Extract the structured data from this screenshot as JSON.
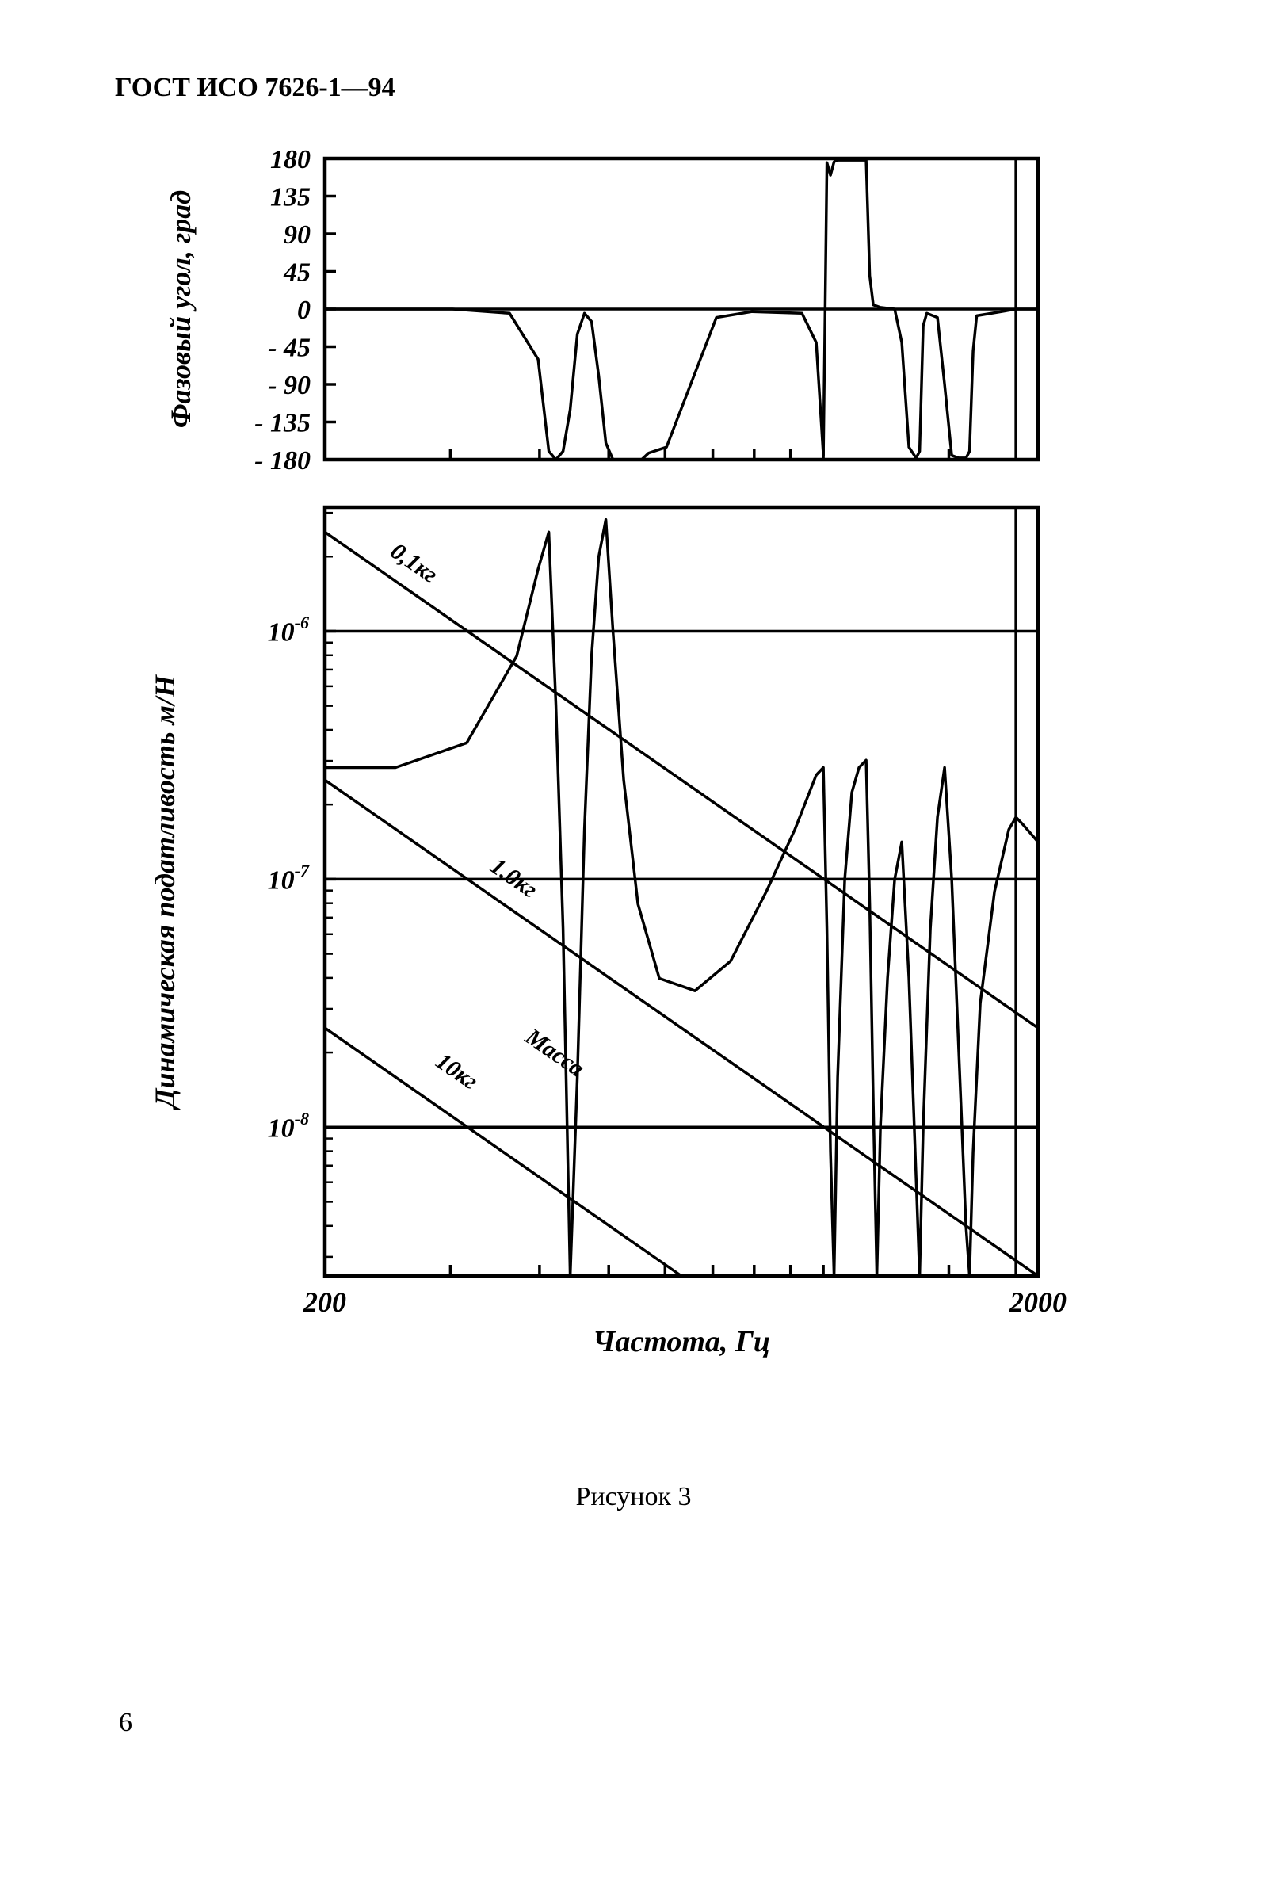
{
  "header": "ГОСТ ИСО 7626-1—94",
  "caption": "Рисунок 3",
  "page_number": "6",
  "figure": {
    "stroke_color": "#000000",
    "stroke_width": 3.5,
    "axis_width": 4.5,
    "bg": "#ffffff",
    "x_axis": {
      "label": "Частота, Гц",
      "min_log": 2.301,
      "max_log": 3.301,
      "tick_labels": [
        "200",
        "2000"
      ],
      "tick_positions_log": [
        2.301,
        3.301
      ],
      "minor_ticks_log": [
        2.477,
        2.602,
        2.699,
        2.778,
        2.845,
        2.903,
        2.954,
        3.0,
        3.176
      ],
      "label_fontsize": 38
    },
    "phase_chart": {
      "y_label": "Фазовый угол, град",
      "y_min": -180,
      "y_max": 180,
      "y_ticks": [
        180,
        135,
        90,
        45,
        0,
        -45,
        -90,
        -135,
        -180
      ],
      "y_fontsize": 34,
      "label_fontsize": 36,
      "curve_logx_deg": [
        [
          2.301,
          0
        ],
        [
          2.48,
          0
        ],
        [
          2.56,
          -5
        ],
        [
          2.6,
          -60
        ],
        [
          2.615,
          -170
        ],
        [
          2.625,
          -180
        ],
        [
          2.635,
          -170
        ],
        [
          2.645,
          -120
        ],
        [
          2.655,
          -30
        ],
        [
          2.665,
          -5
        ],
        [
          2.675,
          -15
        ],
        [
          2.685,
          -80
        ],
        [
          2.695,
          -160
        ],
        [
          2.705,
          -180
        ],
        [
          2.735,
          -180
        ],
        [
          2.745,
          -180
        ],
        [
          2.755,
          -172
        ],
        [
          2.78,
          -165
        ],
        [
          2.85,
          -10
        ],
        [
          2.9,
          -3
        ],
        [
          2.97,
          -5
        ],
        [
          2.99,
          -40
        ],
        [
          3.0,
          -175
        ],
        [
          3.005,
          175
        ],
        [
          3.01,
          160
        ],
        [
          3.015,
          176
        ],
        [
          3.02,
          178
        ],
        [
          3.04,
          178
        ],
        [
          3.06,
          178
        ],
        [
          3.065,
          40
        ],
        [
          3.07,
          5
        ],
        [
          3.08,
          2
        ],
        [
          3.1,
          0
        ],
        [
          3.11,
          -40
        ],
        [
          3.12,
          -165
        ],
        [
          3.13,
          -178
        ],
        [
          3.135,
          -170
        ],
        [
          3.14,
          -20
        ],
        [
          3.145,
          -5
        ],
        [
          3.16,
          -10
        ],
        [
          3.17,
          -90
        ],
        [
          3.18,
          -175
        ],
        [
          3.19,
          -178
        ],
        [
          3.2,
          -178
        ],
        [
          3.205,
          -170
        ],
        [
          3.21,
          -50
        ],
        [
          3.215,
          -8
        ],
        [
          3.25,
          -3
        ],
        [
          3.27,
          0
        ],
        [
          3.28,
          0
        ],
        [
          3.301,
          0
        ]
      ],
      "zero_line": true
    },
    "compliance_chart": {
      "y_label": "Динамическая податливость м/Н",
      "y_min_log": -8.6,
      "y_max_log": -5.5,
      "y_ticks_log": [
        -6,
        -7,
        -8
      ],
      "y_tick_labels": [
        "10⁻⁶",
        "10⁻⁷",
        "10⁻⁸"
      ],
      "y_fontsize": 34,
      "label_fontsize": 36,
      "mass_lines": [
        {
          "label": "0,1кг",
          "y_at_200_log": -5.6,
          "y_at_2000_log": -7.6,
          "label_pos_logx": 2.42,
          "label_pos_logy": -5.75
        },
        {
          "label": "1,0кг",
          "y_at_200_log": -6.6,
          "y_at_2000_log": -8.6,
          "label_pos_logx": 2.56,
          "label_pos_logy": -7.02
        },
        {
          "label": "10кг",
          "y_at_200_log": -7.6,
          "y_at_2000_log": -9.6,
          "label_pos_logx": 2.48,
          "label_pos_logy": -7.8
        }
      ],
      "mass_text": {
        "label": "Масса",
        "pos_logx": 2.58,
        "pos_logy": -7.65
      },
      "curve_logx_logy": [
        [
          2.301,
          -6.55
        ],
        [
          2.4,
          -6.55
        ],
        [
          2.5,
          -6.45
        ],
        [
          2.57,
          -6.1
        ],
        [
          2.6,
          -5.75
        ],
        [
          2.615,
          -5.6
        ],
        [
          2.625,
          -6.3
        ],
        [
          2.635,
          -7.2
        ],
        [
          2.645,
          -8.6
        ],
        [
          2.655,
          -7.8
        ],
        [
          2.665,
          -6.8
        ],
        [
          2.675,
          -6.1
        ],
        [
          2.685,
          -5.7
        ],
        [
          2.695,
          -5.55
        ],
        [
          2.705,
          -6.0
        ],
        [
          2.72,
          -6.6
        ],
        [
          2.74,
          -7.1
        ],
        [
          2.77,
          -7.4
        ],
        [
          2.82,
          -7.45
        ],
        [
          2.87,
          -7.33
        ],
        [
          2.92,
          -7.05
        ],
        [
          2.96,
          -6.8
        ],
        [
          2.99,
          -6.58
        ],
        [
          3.0,
          -6.55
        ],
        [
          3.005,
          -7.2
        ],
        [
          3.01,
          -8.1
        ],
        [
          3.015,
          -8.6
        ],
        [
          3.02,
          -7.8
        ],
        [
          3.03,
          -7.0
        ],
        [
          3.04,
          -6.65
        ],
        [
          3.05,
          -6.55
        ],
        [
          3.06,
          -6.52
        ],
        [
          3.065,
          -7.1
        ],
        [
          3.07,
          -7.9
        ],
        [
          3.075,
          -8.6
        ],
        [
          3.08,
          -8.0
        ],
        [
          3.09,
          -7.4
        ],
        [
          3.1,
          -7.0
        ],
        [
          3.11,
          -6.85
        ],
        [
          3.12,
          -7.4
        ],
        [
          3.13,
          -8.2
        ],
        [
          3.135,
          -8.6
        ],
        [
          3.14,
          -8.0
        ],
        [
          3.15,
          -7.2
        ],
        [
          3.16,
          -6.75
        ],
        [
          3.17,
          -6.55
        ],
        [
          3.18,
          -7.0
        ],
        [
          3.19,
          -7.7
        ],
        [
          3.2,
          -8.4
        ],
        [
          3.205,
          -8.6
        ],
        [
          3.21,
          -8.1
        ],
        [
          3.22,
          -7.5
        ],
        [
          3.24,
          -7.05
        ],
        [
          3.26,
          -6.8
        ],
        [
          3.27,
          -6.75
        ],
        [
          3.28,
          -6.78
        ],
        [
          3.301,
          -6.85
        ]
      ],
      "gridlines_log": [
        -6,
        -7,
        -8
      ],
      "vline_logx": 3.27
    }
  }
}
